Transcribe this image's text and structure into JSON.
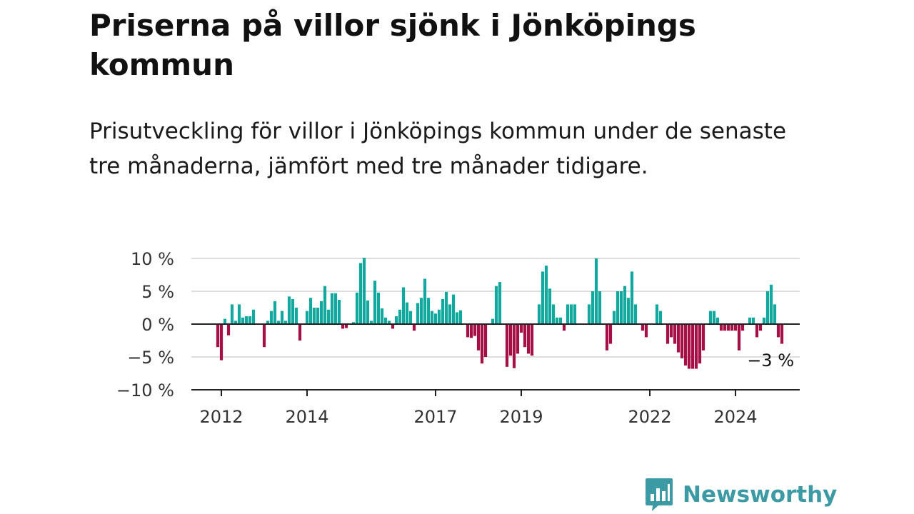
{
  "title": "Priserna på villor sjönk i Jönköpings kommun",
  "subtitle": "Prisutveckling för villor i Jönköpings kommun under de senaste tre månaderna, jämfört med tre månader tidigare.",
  "brand": {
    "name": "Newsworthy",
    "color": "#3c9aa5",
    "logo_icon": "bar-chart-speech-bubble-icon"
  },
  "colors": {
    "positive": "#13a89e",
    "negative": "#a50f45",
    "grid": "#dddddd",
    "axis": "#222222"
  },
  "chart_data": {
    "type": "bar",
    "x_start": "2011-12",
    "x_end": "2024-12",
    "ylim": [
      -10,
      10
    ],
    "y_ticks": [
      10,
      5,
      0,
      -5,
      -10
    ],
    "y_tick_labels": [
      "10 %",
      "5 %",
      "0 %",
      "−5 %",
      "−10 %"
    ],
    "x_ticks": [
      "2012",
      "2014",
      "2017",
      "2019",
      "2022",
      "2024"
    ],
    "grid": true,
    "end_label": "−3 %",
    "values": [
      -3.5,
      -5.5,
      0.8,
      -1.7,
      3,
      0.5,
      3,
      1,
      1.2,
      1.2,
      2.2,
      0,
      0,
      -3.5,
      0.5,
      2,
      3.5,
      0.5,
      2,
      0.5,
      4.2,
      3.8,
      2.5,
      -2.5,
      0,
      2,
      4,
      2.5,
      2.5,
      3.5,
      5.8,
      2.2,
      4.7,
      4.7,
      3.7,
      -0.7,
      -0.6,
      0,
      0.3,
      4.8,
      9.3,
      10.1,
      3.6,
      0.5,
      6.6,
      4.8,
      2.4,
      1,
      0.5,
      -0.7,
      1.2,
      2.2,
      5.6,
      3.3,
      2,
      -1,
      3.2,
      4,
      6.9,
      4,
      2,
      1.6,
      2.2,
      3.8,
      4.9,
      3,
      4.5,
      1.8,
      2.1,
      0,
      -2,
      -2.1,
      -1.8,
      -4,
      -6,
      -5,
      0,
      0.8,
      5.8,
      6.4,
      0,
      -6.5,
      -4.8,
      -6.7,
      -4.5,
      -1.3,
      -3.5,
      -4.5,
      -4.8,
      0,
      3,
      8,
      8.9,
      5.4,
      3,
      1,
      1,
      -1,
      3,
      3,
      3,
      0,
      0,
      0,
      3,
      5,
      10,
      5,
      0,
      -4,
      -3,
      2,
      5,
      5,
      5.8,
      4,
      8,
      3,
      0,
      -1,
      -2,
      0,
      0,
      3,
      2,
      0,
      -3,
      -2,
      -3,
      -4.3,
      -5.2,
      -6.3,
      -6.8,
      -6.8,
      -6.8,
      -6,
      -4,
      0,
      2,
      2,
      1,
      -1,
      -1,
      -1,
      -1,
      -1,
      -4,
      -1,
      0,
      1,
      1,
      -2,
      -1,
      1,
      5,
      6,
      3,
      -2,
      -3
    ]
  }
}
